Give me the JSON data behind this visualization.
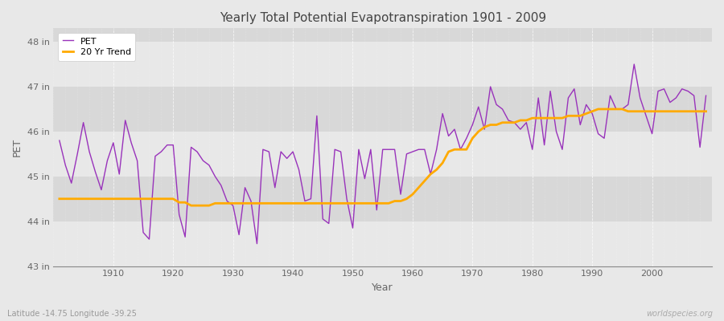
{
  "title": "Yearly Total Potential Evapotranspiration 1901 - 2009",
  "xlabel": "Year",
  "ylabel": "PET",
  "background_color": "#e8e8e8",
  "plot_bg_color": "#d8d8d8",
  "band_color_light": "#e0e0e0",
  "band_color_dark": "#d0d0d0",
  "pet_color": "#9933bb",
  "trend_color": "#ffaa00",
  "lat_lon_text": "Latitude -14.75 Longitude -39.25",
  "watermark": "worldspecies.org",
  "ylim": [
    43,
    48.3
  ],
  "yticks": [
    43,
    44,
    45,
    46,
    47,
    48
  ],
  "ytick_labels": [
    "43 in",
    "44 in",
    "45 in",
    "46 in",
    "47 in",
    "48 in"
  ],
  "xlim": [
    1900,
    2010
  ],
  "xticks": [
    1910,
    1920,
    1930,
    1940,
    1950,
    1960,
    1970,
    1980,
    1990,
    2000
  ],
  "years": [
    1901,
    1902,
    1903,
    1904,
    1905,
    1906,
    1907,
    1908,
    1909,
    1910,
    1911,
    1912,
    1913,
    1914,
    1915,
    1916,
    1917,
    1918,
    1919,
    1920,
    1921,
    1922,
    1923,
    1924,
    1925,
    1926,
    1927,
    1928,
    1929,
    1930,
    1931,
    1932,
    1933,
    1934,
    1935,
    1936,
    1937,
    1938,
    1939,
    1940,
    1941,
    1942,
    1943,
    1944,
    1945,
    1946,
    1947,
    1948,
    1949,
    1950,
    1951,
    1952,
    1953,
    1954,
    1955,
    1956,
    1957,
    1958,
    1959,
    1960,
    1961,
    1962,
    1963,
    1964,
    1965,
    1966,
    1967,
    1968,
    1969,
    1970,
    1971,
    1972,
    1973,
    1974,
    1975,
    1976,
    1977,
    1978,
    1979,
    1980,
    1981,
    1982,
    1983,
    1984,
    1985,
    1986,
    1987,
    1988,
    1989,
    1990,
    1991,
    1992,
    1993,
    1994,
    1995,
    1996,
    1997,
    1998,
    1999,
    2000,
    2001,
    2002,
    2003,
    2004,
    2005,
    2006,
    2007,
    2008,
    2009
  ],
  "pet_values": [
    45.8,
    45.25,
    44.85,
    45.5,
    46.2,
    45.55,
    45.1,
    44.7,
    45.35,
    45.75,
    45.05,
    46.25,
    45.75,
    45.35,
    43.75,
    43.6,
    45.45,
    45.55,
    45.7,
    45.7,
    44.15,
    43.65,
    45.65,
    45.55,
    45.35,
    45.25,
    45.0,
    44.8,
    44.45,
    44.35,
    43.7,
    44.75,
    44.45,
    43.5,
    45.6,
    45.55,
    44.75,
    45.55,
    45.4,
    45.55,
    45.15,
    44.45,
    44.5,
    46.35,
    44.05,
    43.95,
    45.6,
    45.55,
    44.5,
    43.85,
    45.6,
    44.95,
    45.6,
    44.25,
    45.6,
    45.6,
    45.6,
    44.6,
    45.5,
    45.55,
    45.6,
    45.6,
    45.05,
    45.6,
    46.4,
    45.9,
    46.05,
    45.6,
    45.85,
    46.15,
    46.55,
    46.05,
    47.0,
    46.6,
    46.5,
    46.25,
    46.2,
    46.05,
    46.2,
    45.6,
    46.75,
    45.7,
    46.9,
    46.0,
    45.6,
    46.75,
    46.95,
    46.15,
    46.6,
    46.4,
    45.95,
    45.85,
    46.8,
    46.5,
    46.5,
    46.6,
    47.5,
    46.75,
    46.35,
    45.95,
    46.9,
    46.95,
    46.65,
    46.75,
    46.95,
    46.9,
    46.8,
    45.65,
    46.8
  ],
  "trend_values": [
    44.5,
    44.5,
    44.5,
    44.5,
    44.5,
    44.5,
    44.5,
    44.5,
    44.5,
    44.5,
    44.5,
    44.5,
    44.5,
    44.5,
    44.5,
    44.5,
    44.5,
    44.5,
    44.5,
    44.5,
    44.42,
    44.42,
    44.35,
    44.35,
    44.35,
    44.35,
    44.4,
    44.4,
    44.4,
    44.4,
    44.4,
    44.4,
    44.4,
    44.4,
    44.4,
    44.4,
    44.4,
    44.4,
    44.4,
    44.4,
    44.4,
    44.4,
    44.4,
    44.4,
    44.4,
    44.4,
    44.4,
    44.4,
    44.4,
    44.4,
    44.4,
    44.4,
    44.4,
    44.4,
    44.4,
    44.4,
    44.45,
    44.45,
    44.5,
    44.6,
    44.75,
    44.9,
    45.05,
    45.15,
    45.3,
    45.55,
    45.6,
    45.6,
    45.6,
    45.85,
    46.0,
    46.1,
    46.15,
    46.15,
    46.2,
    46.2,
    46.2,
    46.25,
    46.25,
    46.3,
    46.3,
    46.3,
    46.3,
    46.3,
    46.3,
    46.35,
    46.35,
    46.35,
    46.4,
    46.45,
    46.5,
    46.5,
    46.5,
    46.5,
    46.5,
    46.45,
    46.45,
    46.45,
    46.45,
    46.45,
    46.45,
    46.45,
    46.45,
    46.45,
    46.45,
    46.45,
    46.45,
    46.45,
    46.45
  ]
}
